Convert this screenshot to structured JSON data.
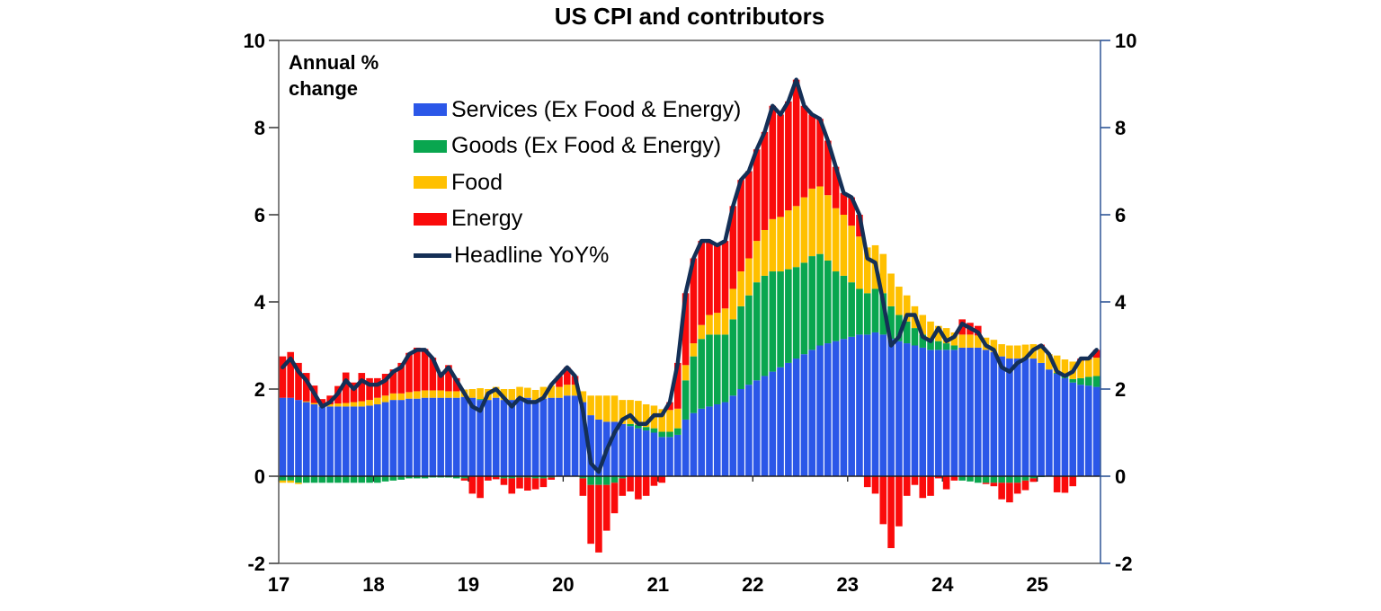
{
  "legend": [
    {
      "label": "Services (Ex Food & Energy)",
      "color": "#2B57E8",
      "type": "box"
    },
    {
      "label": "Goods (Ex Food & Energy)",
      "color": "#09A64F",
      "type": "box"
    },
    {
      "label": "Food",
      "color": "#FFC000",
      "type": "box"
    },
    {
      "label": "Energy",
      "color": "#FA0B0B",
      "type": "box"
    },
    {
      "label": "Headline YoY%",
      "color": "#142F56",
      "type": "line"
    }
  ],
  "chart_data": {
    "type": "stacked-bar-with-line",
    "title": "US CPI and contributors",
    "unit_label_line1": "Annual %",
    "unit_label_line2": "change",
    "frequency": "monthly",
    "start": "2017-01",
    "end": "2025-08",
    "ylim": [
      -2,
      10
    ],
    "y_ticks": [
      "10",
      "8",
      "6",
      "4",
      "2",
      "0",
      "-2"
    ],
    "x_tick_labels": [
      "17",
      "18",
      "19",
      "20",
      "21",
      "22",
      "23",
      "24",
      "25"
    ],
    "grid": false,
    "legend_position": "inside-top-left",
    "series": [
      {
        "key": "services",
        "name": "Services (Ex Food & Energy)",
        "color": "#2B57E8",
        "values": [
          1.8,
          1.8,
          1.75,
          1.7,
          1.65,
          1.6,
          1.6,
          1.6,
          1.6,
          1.6,
          1.6,
          1.62,
          1.65,
          1.7,
          1.75,
          1.75,
          1.78,
          1.78,
          1.8,
          1.8,
          1.8,
          1.8,
          1.8,
          1.82,
          1.8,
          1.75,
          1.75,
          1.8,
          1.75,
          1.75,
          1.8,
          1.8,
          1.75,
          1.78,
          1.8,
          1.8,
          1.85,
          1.85,
          1.7,
          1.4,
          1.3,
          1.25,
          1.25,
          1.2,
          1.15,
          1.1,
          1.05,
          1.0,
          0.9,
          0.9,
          0.95,
          1.3,
          1.45,
          1.55,
          1.6,
          1.65,
          1.7,
          1.85,
          2.0,
          2.1,
          2.2,
          2.3,
          2.4,
          2.5,
          2.6,
          2.7,
          2.8,
          2.9,
          3.0,
          3.05,
          3.1,
          3.15,
          3.2,
          3.25,
          3.25,
          3.3,
          3.25,
          3.15,
          3.1,
          3.05,
          3.0,
          2.95,
          2.9,
          2.9,
          2.9,
          2.9,
          2.95,
          2.95,
          2.95,
          2.9,
          2.85,
          2.75,
          2.7,
          2.7,
          2.7,
          2.7,
          2.6,
          2.45,
          2.35,
          2.25,
          2.15,
          2.1,
          2.08,
          2.05
        ]
      },
      {
        "key": "goods",
        "name": "Goods (Ex Food & Energy)",
        "color": "#09A64F",
        "values": [
          -0.1,
          -0.1,
          -0.15,
          -0.15,
          -0.15,
          -0.15,
          -0.15,
          -0.15,
          -0.15,
          -0.15,
          -0.15,
          -0.15,
          -0.15,
          -0.12,
          -0.1,
          -0.08,
          -0.05,
          -0.05,
          -0.05,
          -0.03,
          -0.03,
          -0.03,
          -0.05,
          -0.05,
          0.0,
          0.02,
          0.0,
          -0.02,
          -0.05,
          -0.05,
          -0.03,
          -0.03,
          -0.05,
          -0.05,
          -0.03,
          0.0,
          0.0,
          0.0,
          -0.05,
          -0.2,
          -0.2,
          -0.2,
          -0.15,
          -0.05,
          0.05,
          0.08,
          0.08,
          0.1,
          0.12,
          0.12,
          0.15,
          0.9,
          1.3,
          1.6,
          1.65,
          1.6,
          1.55,
          1.75,
          1.9,
          2.05,
          2.25,
          2.3,
          2.3,
          2.2,
          2.15,
          2.1,
          2.1,
          2.15,
          2.1,
          1.9,
          1.6,
          1.45,
          1.25,
          1.05,
          0.95,
          1.0,
          0.95,
          0.75,
          0.6,
          0.5,
          0.4,
          0.3,
          0.25,
          0.2,
          0.15,
          0.1,
          -0.1,
          -0.12,
          -0.15,
          -0.15,
          -0.15,
          -0.15,
          -0.15,
          -0.15,
          -0.1,
          -0.05,
          -0.02,
          0.0,
          0.02,
          0.05,
          0.08,
          0.15,
          0.2,
          0.25
        ]
      },
      {
        "key": "food",
        "name": "Food",
        "color": "#FFC000",
        "values": [
          -0.05,
          -0.05,
          -0.03,
          0.02,
          0.03,
          0.02,
          0.05,
          0.07,
          0.08,
          0.1,
          0.12,
          0.13,
          0.15,
          0.15,
          0.15,
          0.15,
          0.15,
          0.17,
          0.17,
          0.17,
          0.17,
          0.15,
          0.15,
          0.17,
          0.2,
          0.25,
          0.25,
          0.25,
          0.25,
          0.25,
          0.25,
          0.23,
          0.23,
          0.27,
          0.28,
          0.25,
          0.25,
          0.25,
          0.25,
          0.45,
          0.55,
          0.6,
          0.6,
          0.55,
          0.55,
          0.55,
          0.52,
          0.52,
          0.52,
          0.5,
          0.45,
          0.35,
          0.3,
          0.32,
          0.45,
          0.5,
          0.6,
          0.7,
          0.8,
          0.85,
          0.95,
          1.05,
          1.2,
          1.25,
          1.35,
          1.4,
          1.5,
          1.55,
          1.55,
          1.5,
          1.45,
          1.4,
          1.3,
          1.2,
          1.05,
          1.0,
          0.9,
          0.75,
          0.65,
          0.6,
          0.5,
          0.45,
          0.4,
          0.35,
          0.35,
          0.3,
          0.3,
          0.3,
          0.28,
          0.28,
          0.28,
          0.28,
          0.3,
          0.3,
          0.32,
          0.33,
          0.34,
          0.35,
          0.4,
          0.38,
          0.4,
          0.4,
          0.4,
          0.42
        ]
      },
      {
        "key": "energy",
        "name": "Energy",
        "color": "#FA0B0B",
        "values": [
          0.95,
          1.05,
          0.85,
          0.65,
          0.4,
          0.15,
          0.2,
          0.4,
          0.7,
          0.45,
          0.65,
          0.5,
          0.45,
          0.5,
          0.55,
          0.7,
          0.9,
          1.0,
          0.95,
          0.75,
          0.4,
          0.6,
          0.3,
          -0.05,
          -0.4,
          -0.5,
          -0.1,
          -0.05,
          -0.15,
          -0.35,
          -0.25,
          -0.3,
          -0.25,
          -0.2,
          -0.05,
          0.25,
          0.4,
          0.2,
          -0.4,
          -1.35,
          -1.55,
          -1.05,
          -0.7,
          -0.4,
          -0.35,
          -0.53,
          -0.45,
          -0.22,
          -0.15,
          0.18,
          1.05,
          1.65,
          1.95,
          1.93,
          1.7,
          1.55,
          1.55,
          1.9,
          2.1,
          2.0,
          2.1,
          2.25,
          2.6,
          2.35,
          2.5,
          2.9,
          2.1,
          1.7,
          1.55,
          1.25,
          0.95,
          0.5,
          0.65,
          0.5,
          -0.25,
          -0.4,
          -1.1,
          -1.65,
          -1.15,
          -0.45,
          -0.2,
          -0.5,
          -0.45,
          -0.05,
          -0.3,
          -0.1,
          0.35,
          0.27,
          0.22,
          -0.03,
          -0.08,
          -0.38,
          -0.45,
          -0.25,
          -0.22,
          -0.08,
          0.08,
          0.0,
          -0.37,
          -0.38,
          -0.23,
          0.05,
          0.02,
          0.18
        ]
      }
    ],
    "line": {
      "name": "Headline YoY%",
      "color": "#142F56",
      "values": [
        2.5,
        2.7,
        2.4,
        2.2,
        1.9,
        1.6,
        1.7,
        1.9,
        2.2,
        2.0,
        2.2,
        2.1,
        2.1,
        2.2,
        2.4,
        2.5,
        2.8,
        2.9,
        2.9,
        2.7,
        2.3,
        2.5,
        2.2,
        1.9,
        1.6,
        1.5,
        1.9,
        2.0,
        1.8,
        1.6,
        1.8,
        1.7,
        1.7,
        1.8,
        2.1,
        2.3,
        2.5,
        2.3,
        1.5,
        0.3,
        0.1,
        0.6,
        1.0,
        1.3,
        1.4,
        1.2,
        1.2,
        1.4,
        1.4,
        1.7,
        2.6,
        4.2,
        5.0,
        5.4,
        5.4,
        5.3,
        5.4,
        6.2,
        6.8,
        7.0,
        7.5,
        7.9,
        8.5,
        8.3,
        8.6,
        9.1,
        8.5,
        8.3,
        8.2,
        7.7,
        7.1,
        6.5,
        6.4,
        6.0,
        5.0,
        4.9,
        4.0,
        3.0,
        3.2,
        3.7,
        3.7,
        3.2,
        3.1,
        3.4,
        3.1,
        3.2,
        3.5,
        3.4,
        3.3,
        3.0,
        2.9,
        2.5,
        2.4,
        2.6,
        2.7,
        2.9,
        3.0,
        2.8,
        2.4,
        2.3,
        2.4,
        2.7,
        2.7,
        2.9
      ]
    }
  }
}
